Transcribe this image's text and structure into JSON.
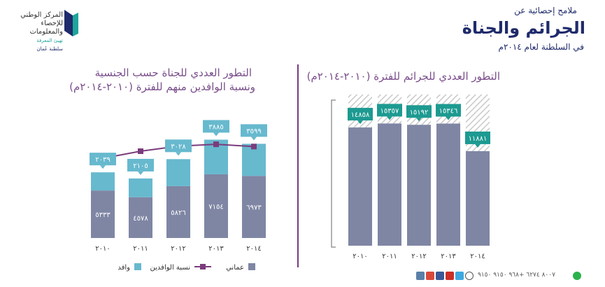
{
  "header": {
    "subtitle": "ملامح إحصائية عن",
    "title": "الجرائم والجناة",
    "year_line": "في السلطنة لعام ٢٠١٤م"
  },
  "logo": {
    "line1": "المركز الوطني",
    "line2": "للإحصاء",
    "line3": "والمعلومات",
    "line4": "تهيئ المعرفة",
    "line5": "سلطنة عُمان"
  },
  "colors": {
    "bar_main": "#7f86a4",
    "bar_top": "#67b9ce",
    "label_box": "#1d9a91",
    "line": "#7b3c7c",
    "hatch": "#c9c9c9",
    "text": "#333333"
  },
  "left_chart": {
    "title_line1": "التطور العددي للجناة حسب الجنسية",
    "title_line2": "ونسبة الوافدين منهم  للفترة (٢٠١٠-٢٠١٤م)",
    "legend": {
      "omani": "عماني",
      "expat_ratio": "نسبة الوافدين",
      "expat": "وافد"
    }
  },
  "right_chart": {
    "title": "التطور العددي للجرائم للفترة (٢٠١٠-٢٠١٤م)"
  },
  "footer": {
    "phone_text": "٨٠٠٧ ٦٢٧٤   +٩٦٨ ٩١٥٠ ٩١٥٠",
    "icons": [
      "instagram-icon",
      "google-plus-icon",
      "facebook-icon",
      "youtube-icon",
      "twitter-icon",
      "phone-icon",
      "whatsapp-icon"
    ]
  },
  "chart_data": [
    {
      "type": "bar",
      "stacked": true,
      "categories": [
        "٢٠١٠",
        "٢٠١١",
        "٢٠١٢",
        "٢٠١٣",
        "٢٠١٤"
      ],
      "series": [
        {
          "name": "عماني",
          "values": [
            5333,
            4578,
            5826,
            7154,
            6973
          ],
          "labels": [
            "٥٣٣٣",
            "٤٥٧٨",
            "٥٨٢٦",
            "٧١٥٤",
            "٦٩٧٣"
          ]
        },
        {
          "name": "وافد",
          "values": [
            2039,
            2105,
            3028,
            3885,
            3599
          ],
          "labels": [
            "٢٠٣٩",
            "٢١٠٥",
            "٣٠٢٨",
            "٣٨٨٥",
            "٣٥٩٩"
          ]
        }
      ],
      "line_series": {
        "name": "نسبة الوافدين",
        "values": [
          27.7,
          31.5,
          34.2,
          35.2,
          34.0
        ]
      },
      "ylim": [
        0,
        12000
      ],
      "legend_position": "bottom"
    },
    {
      "type": "bar",
      "categories": [
        "٢٠١٠",
        "٢٠١١",
        "٢٠١٢",
        "٢٠١٣",
        "٢٠١٤"
      ],
      "values": [
        14858,
        15357,
        15192,
        15346,
        11881
      ],
      "labels": [
        "١٤٨٥٨",
        "١٥٣٥٧",
        "١٥١٩٢",
        "١٥٣٤٦",
        "١١٨٨١"
      ],
      "ylim": [
        0,
        19000
      ]
    }
  ]
}
